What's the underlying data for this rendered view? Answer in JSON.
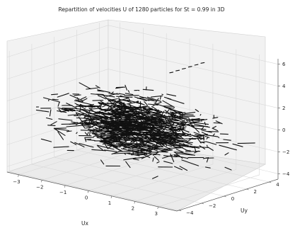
{
  "chart_data": {
    "type": "scatter",
    "subtype": "3d-trajectory-streaks",
    "title": "Repartition of velocities U of 1280 particles for St = 0.99 in 3D",
    "xlabel": "Ux",
    "ylabel": "Uy",
    "zlabel": "",
    "xlim": [
      -3.5,
      3.8
    ],
    "ylim": [
      -4.2,
      4.8
    ],
    "zlim": [
      -4.5,
      6.5
    ],
    "x_ticks": [
      "−3",
      "−2",
      "−1",
      "0",
      "1",
      "2",
      "3"
    ],
    "y_ticks": [
      "−4",
      "−2",
      "0",
      "2",
      "4"
    ],
    "z_ticks": [
      "−4",
      "−2",
      "0",
      "2",
      "4",
      "6"
    ],
    "grid": true,
    "particle_count": 1280,
    "marker_color": "#111111",
    "pane_color": "#f2f2f2"
  }
}
